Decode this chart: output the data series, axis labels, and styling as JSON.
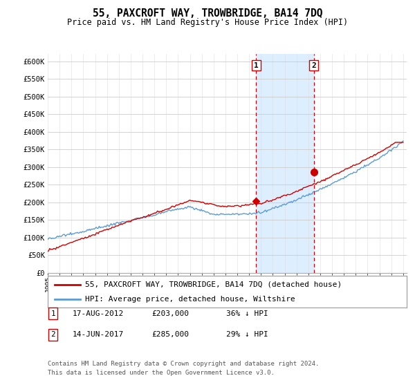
{
  "title": "55, PAXCROFT WAY, TROWBRIDGE, BA14 7DQ",
  "subtitle": "Price paid vs. HM Land Registry's House Price Index (HPI)",
  "ylim": [
    0,
    620000
  ],
  "yticks": [
    0,
    50000,
    100000,
    150000,
    200000,
    250000,
    300000,
    350000,
    400000,
    450000,
    500000,
    550000,
    600000
  ],
  "ytick_labels": [
    "£0",
    "£50K",
    "£100K",
    "£150K",
    "£200K",
    "£250K",
    "£300K",
    "£350K",
    "£400K",
    "£450K",
    "£500K",
    "£550K",
    "£600K"
  ],
  "hpi_color": "#5b9bd5",
  "price_color": "#cc0000",
  "sale1_year_float": 2012.6,
  "sale1_price": 203000,
  "sale1_price_str": "£203,000",
  "sale1_date": "17-AUG-2012",
  "sale1_info": "36% ↓ HPI",
  "sale2_year_float": 2017.45,
  "sale2_price": 285000,
  "sale2_price_str": "£285,000",
  "sale2_date": "14-JUN-2017",
  "sale2_info": "29% ↓ HPI",
  "legend_label1": "55, PAXCROFT WAY, TROWBRIDGE, BA14 7DQ (detached house)",
  "legend_label2": "HPI: Average price, detached house, Wiltshire",
  "footer_line1": "Contains HM Land Registry data © Crown copyright and database right 2024.",
  "footer_line2": "This data is licensed under the Open Government Licence v3.0.",
  "bg_highlight_color": "#ddeeff",
  "vline_color": "#cc0000",
  "background_color": "#ffffff",
  "grid_color": "#cccccc",
  "grid_color_vert": "#dddddd"
}
